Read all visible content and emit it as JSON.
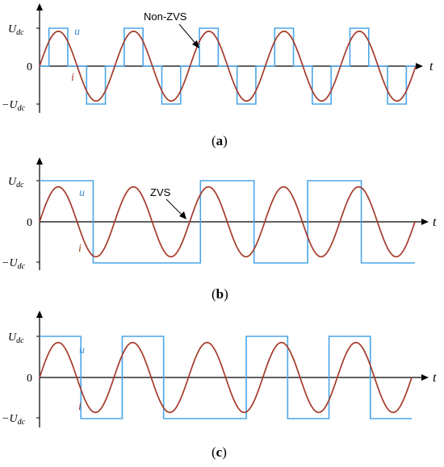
{
  "chart_data": [
    {
      "type": "line",
      "panel": "a",
      "caption": "a",
      "y_tick_labels": {
        "top": "U",
        "top_sub": "dc",
        "zero": "0",
        "bottom": "−U",
        "bottom_sub": "dc"
      },
      "xlabel": "t",
      "series": [
        {
          "name": "u",
          "kind": "square-pulse",
          "amplitude": 1,
          "pulse_width_fraction": 0.5,
          "color": "#4aa6e8"
        },
        {
          "name": "i",
          "kind": "sine",
          "amplitude": 0.92,
          "color": "#a53a2a"
        }
      ],
      "cycles": 5,
      "annotation": {
        "text": "Non-ZVS"
      }
    },
    {
      "type": "line",
      "panel": "b",
      "caption": "b",
      "y_tick_labels": {
        "top": "U",
        "top_sub": "dc",
        "zero": "0",
        "bottom": "−U",
        "bottom_sub": "dc"
      },
      "xlabel": "t",
      "series": [
        {
          "name": "u",
          "kind": "sparse-square",
          "levels": [
            1,
            -1,
            -1,
            1,
            -1,
            1,
            -1
          ],
          "color": "#4aa6e8"
        },
        {
          "name": "i",
          "kind": "sine",
          "amplitude": 0.85,
          "color": "#a53a2a"
        }
      ],
      "cycles": 5,
      "annotation": {
        "text": "ZVS"
      }
    },
    {
      "type": "line",
      "panel": "c",
      "caption": "c",
      "y_tick_labels": {
        "top": "U",
        "top_sub": "dc",
        "zero": "0",
        "bottom": "−U",
        "bottom_sub": "dc"
      },
      "xlabel": "t",
      "series": [
        {
          "name": "u",
          "kind": "sparse-square",
          "levels": [
            1,
            -1,
            1,
            -1,
            -1,
            1,
            -1,
            1,
            -1
          ],
          "color": "#4aa6e8"
        },
        {
          "name": "i",
          "kind": "sine",
          "amplitude": 0.85,
          "color": "#a53a2a"
        }
      ],
      "cycles": 5
    }
  ]
}
